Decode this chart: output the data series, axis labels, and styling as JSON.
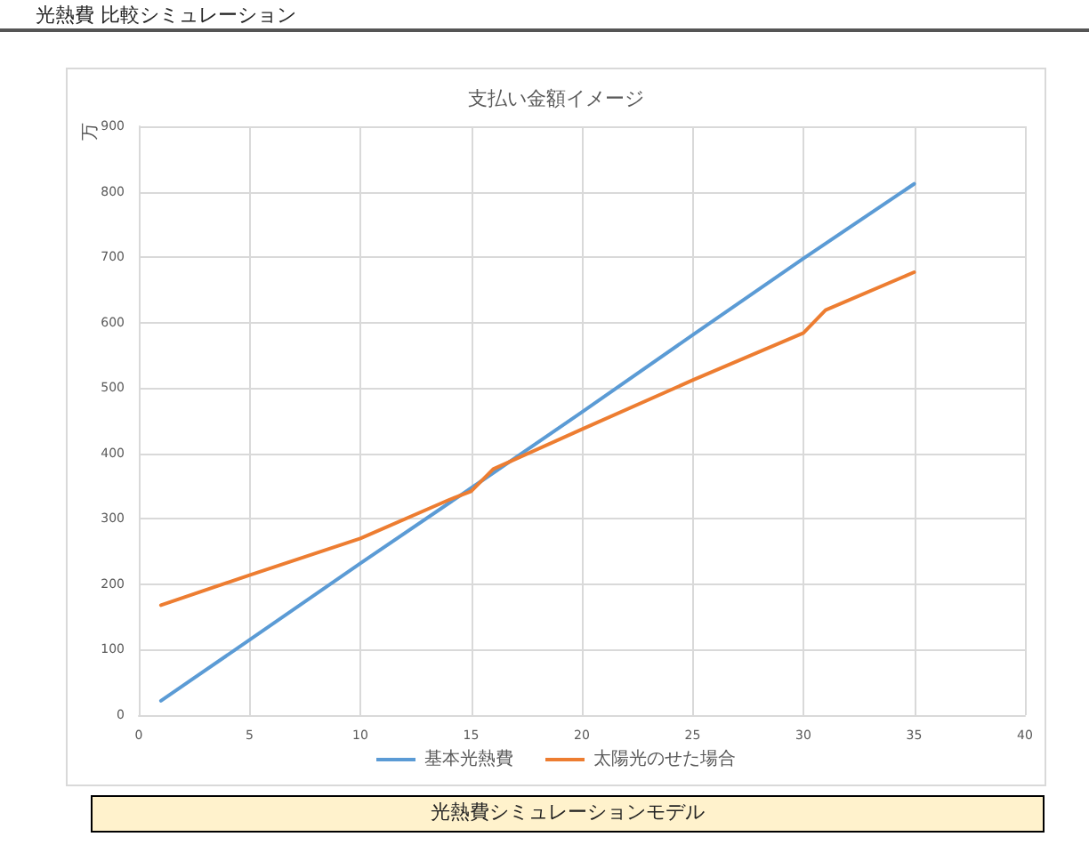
{
  "chart_data": {
    "type": "line",
    "title": "支払い金額イメージ",
    "ylabel": "万",
    "annotations": [
      "光熱費 比較シミュレーション",
      "光熱費シミュレーションモデル"
    ],
    "series": [
      {
        "name": "基本光熱費",
        "color": "#5b9bd5",
        "x": [
          1,
          5,
          10,
          15,
          20,
          25,
          30,
          35
        ],
        "values": [
          22,
          115,
          232,
          347,
          463,
          581,
          698,
          812
        ]
      },
      {
        "name": "太陽光のせた場合",
        "color": "#ed7d31",
        "x": [
          1,
          5,
          10,
          14,
          15,
          16,
          20,
          25,
          30,
          31,
          35
        ],
        "values": [
          168,
          214,
          270,
          329,
          342,
          376,
          437,
          512,
          584,
          619,
          677
        ]
      }
    ],
    "xlim": [
      0,
      40
    ],
    "xticks": [
      0,
      5,
      10,
      15,
      20,
      25,
      30,
      35,
      40
    ],
    "ylim": [
      0,
      900
    ],
    "yticks": [
      0,
      100,
      200,
      300,
      400,
      500,
      600,
      700,
      800,
      900
    ],
    "grid": true,
    "legend": "bottom",
    "marker": "none",
    "line_style": "solid"
  }
}
